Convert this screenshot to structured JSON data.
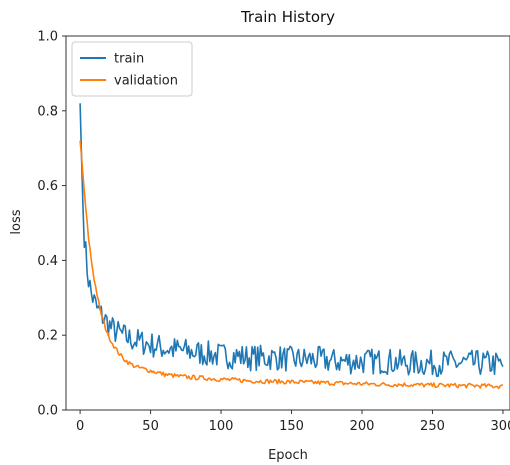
{
  "chart_data": {
    "type": "line",
    "title": "Train History",
    "xlabel": "Epoch",
    "ylabel": "loss",
    "xlim": [
      -10,
      305
    ],
    "ylim": [
      0.0,
      1.0
    ],
    "xticks": [
      0,
      50,
      100,
      150,
      200,
      250,
      300
    ],
    "yticks": [
      0.0,
      0.2,
      0.4,
      0.6,
      0.8,
      1.0
    ],
    "xtick_labels": [
      "0",
      "50",
      "100",
      "150",
      "200",
      "250",
      "300"
    ],
    "ytick_labels": [
      "0.0",
      "0.2",
      "0.4",
      "0.6",
      "0.8",
      "1.0"
    ],
    "grid": false,
    "legend": "top-left",
    "series": [
      {
        "name": "train",
        "color": "#1f77b4",
        "x": [
          0,
          1,
          2,
          3,
          4,
          5,
          6,
          7,
          8,
          10,
          12,
          14,
          16,
          18,
          20,
          22,
          25,
          28,
          30,
          35,
          40,
          45,
          50,
          55,
          60,
          70,
          80,
          90,
          100,
          110,
          120,
          130,
          140,
          150,
          160,
          170,
          180,
          190,
          200,
          210,
          220,
          230,
          240,
          250,
          260,
          270,
          280,
          290,
          300
        ],
        "values": [
          0.82,
          0.68,
          0.55,
          0.47,
          0.42,
          0.38,
          0.35,
          0.33,
          0.31,
          0.29,
          0.27,
          0.26,
          0.25,
          0.24,
          0.23,
          0.22,
          0.21,
          0.205,
          0.2,
          0.19,
          0.185,
          0.18,
          0.175,
          0.17,
          0.165,
          0.16,
          0.155,
          0.15,
          0.145,
          0.145,
          0.14,
          0.14,
          0.14,
          0.135,
          0.135,
          0.135,
          0.13,
          0.13,
          0.13,
          0.13,
          0.13,
          0.125,
          0.125,
          0.125,
          0.125,
          0.125,
          0.125,
          0.125,
          0.12
        ]
      },
      {
        "name": "validation",
        "color": "#ff7f0e",
        "x": [
          0,
          1,
          2,
          3,
          4,
          5,
          6,
          7,
          8,
          10,
          12,
          14,
          16,
          18,
          20,
          22,
          25,
          28,
          30,
          35,
          40,
          45,
          50,
          55,
          60,
          70,
          80,
          90,
          100,
          110,
          120,
          130,
          140,
          150,
          160,
          170,
          180,
          190,
          200,
          210,
          220,
          230,
          240,
          250,
          260,
          270,
          280,
          290,
          300
        ],
        "values": [
          0.72,
          0.68,
          0.63,
          0.58,
          0.54,
          0.5,
          0.46,
          0.43,
          0.4,
          0.35,
          0.31,
          0.27,
          0.245,
          0.22,
          0.2,
          0.185,
          0.165,
          0.15,
          0.14,
          0.125,
          0.115,
          0.11,
          0.105,
          0.1,
          0.095,
          0.09,
          0.087,
          0.085,
          0.082,
          0.08,
          0.078,
          0.077,
          0.076,
          0.075,
          0.074,
          0.073,
          0.072,
          0.071,
          0.07,
          0.069,
          0.068,
          0.068,
          0.067,
          0.066,
          0.066,
          0.065,
          0.065,
          0.064,
          0.063
        ]
      }
    ]
  }
}
